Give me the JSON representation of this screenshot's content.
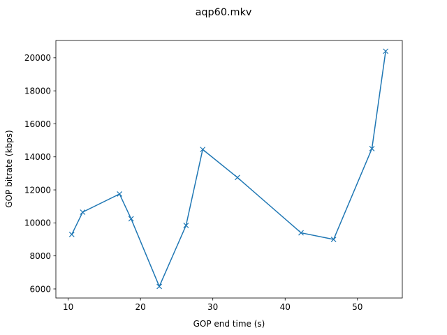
{
  "chart_data": {
    "type": "line",
    "title": "aqp60.mkv",
    "xlabel": "GOP end time (s)",
    "ylabel": "GOP bitrate (kbps)",
    "xlim": [
      8.3,
      56.2
    ],
    "ylim": [
      5450,
      21050
    ],
    "xticks": [
      10,
      20,
      30,
      40,
      50
    ],
    "yticks": [
      6000,
      8000,
      10000,
      12000,
      14000,
      16000,
      18000,
      20000
    ],
    "grid": false,
    "marker": "x",
    "color": "#1f77b4",
    "series": [
      {
        "x": [
          10.5,
          12.0,
          17.1,
          18.7,
          22.6,
          26.3,
          28.6,
          33.4,
          42.2,
          46.7,
          52.0,
          53.9
        ],
        "values": [
          9300,
          10650,
          11750,
          10250,
          6150,
          9850,
          14450,
          12750,
          9400,
          9000,
          14500,
          20400
        ]
      }
    ]
  }
}
